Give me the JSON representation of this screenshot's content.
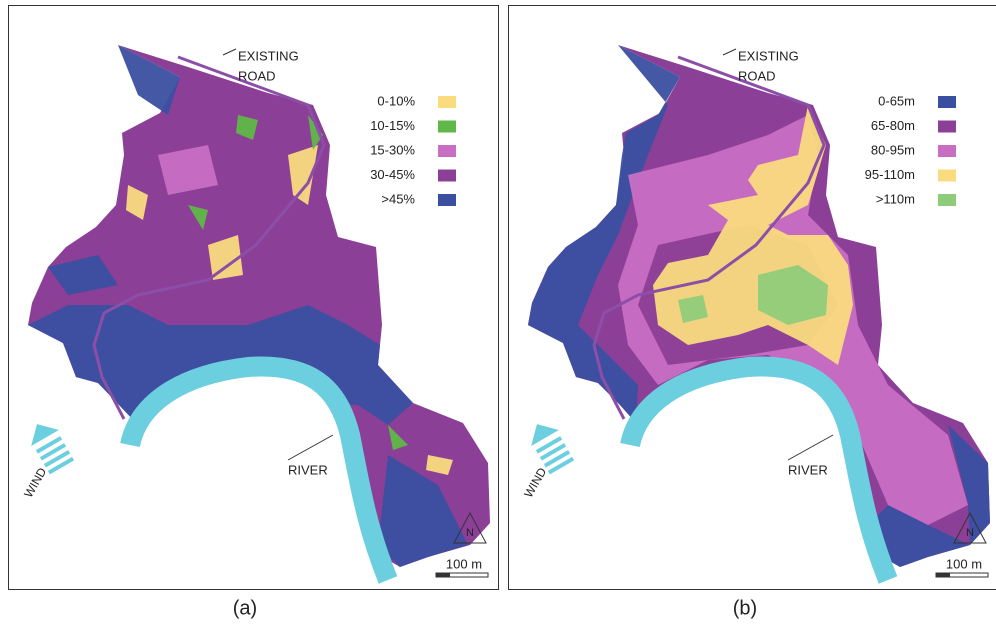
{
  "panels": [
    {
      "caption": "(a)",
      "road_label": [
        "EXISTING",
        "ROAD"
      ],
      "river_label": "RIVER",
      "wind_label": "WIND",
      "north_label": "N",
      "scale_label": "100 m",
      "legend": [
        {
          "label": "0-10%",
          "color": "#fadb7e"
        },
        {
          "label": "10-15%",
          "color": "#5fb847"
        },
        {
          "label": "15-30%",
          "color": "#c86fc4"
        },
        {
          "label": "30-45%",
          "color": "#8c3f96"
        },
        {
          "label": ">45%",
          "color": "#3a4fa0"
        }
      ]
    },
    {
      "caption": "(b)",
      "road_label": [
        "EXISTING",
        "ROAD"
      ],
      "river_label": "RIVER",
      "wind_label": "WIND",
      "north_label": "N",
      "scale_label": "100 m",
      "legend": [
        {
          "label": "0-65m",
          "color": "#3a4fa0"
        },
        {
          "label": "65-80m",
          "color": "#8c3f96"
        },
        {
          "label": "80-95m",
          "color": "#c86fc4"
        },
        {
          "label": "95-110m",
          "color": "#fadb7e"
        },
        {
          "label": ">110m",
          "color": "#8fcc7a"
        }
      ]
    }
  ]
}
